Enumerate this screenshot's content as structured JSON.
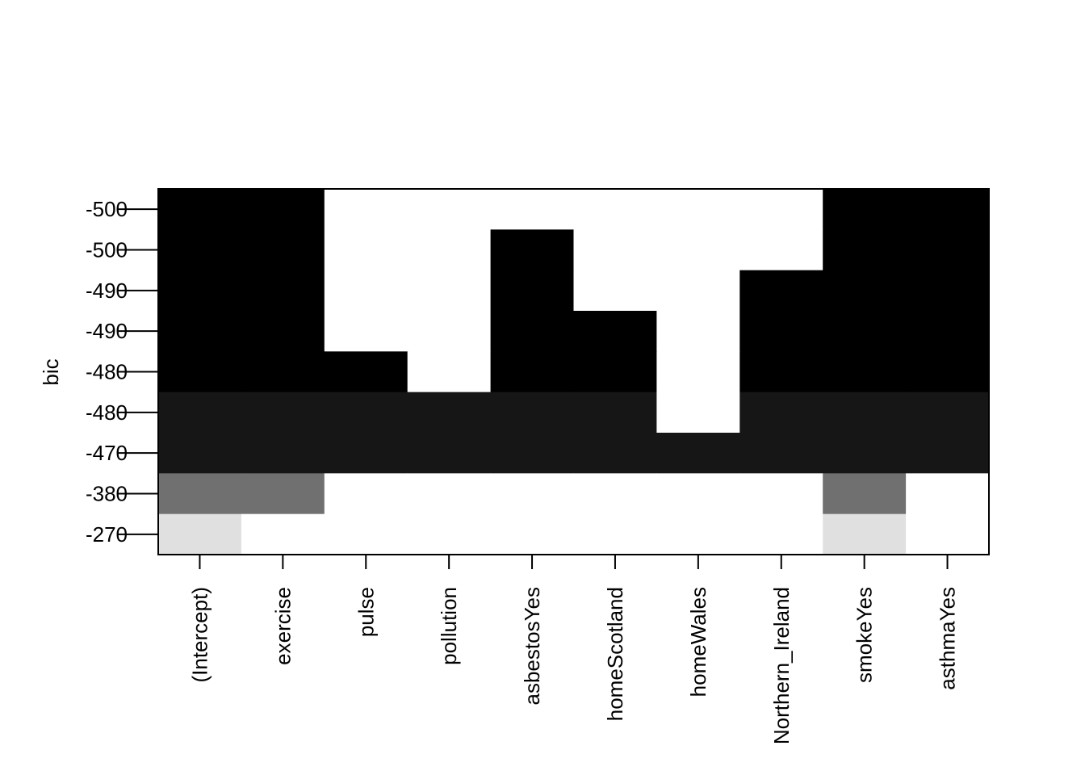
{
  "chart_data": {
    "type": "heatmap",
    "title": "",
    "xlabel": "",
    "ylabel": "bic",
    "variables": [
      "(Intercept)",
      "exercise",
      "pulse",
      "pollution",
      "asbestosYes",
      "homeScotland",
      "homeWales",
      "Northern_Ireland",
      "smokeYes",
      "asthmaYes"
    ],
    "y_tick_labels": [
      "-500",
      "-500",
      "-490",
      "-490",
      "-480",
      "-480",
      "-470",
      "-380",
      "-270"
    ],
    "rows": [
      {
        "bic": "-500",
        "shade": "#000000",
        "included": [
          1,
          1,
          0,
          0,
          0,
          0,
          0,
          0,
          1,
          1
        ]
      },
      {
        "bic": "-500",
        "shade": "#000000",
        "included": [
          1,
          1,
          0,
          0,
          1,
          0,
          0,
          0,
          1,
          1
        ]
      },
      {
        "bic": "-490",
        "shade": "#000000",
        "included": [
          1,
          1,
          0,
          0,
          1,
          0,
          0,
          1,
          1,
          1
        ]
      },
      {
        "bic": "-490",
        "shade": "#000000",
        "included": [
          1,
          1,
          0,
          0,
          1,
          1,
          0,
          1,
          1,
          1
        ]
      },
      {
        "bic": "-480",
        "shade": "#000000",
        "included": [
          1,
          1,
          1,
          0,
          1,
          1,
          0,
          1,
          1,
          1
        ]
      },
      {
        "bic": "-480",
        "shade": "#161616",
        "included": [
          1,
          1,
          1,
          1,
          1,
          1,
          0,
          1,
          1,
          1
        ]
      },
      {
        "bic": "-470",
        "shade": "#161616",
        "included": [
          1,
          1,
          1,
          1,
          1,
          1,
          1,
          1,
          1,
          1
        ]
      },
      {
        "bic": "-380",
        "shade": "#707070",
        "included": [
          1,
          1,
          0,
          0,
          0,
          0,
          0,
          0,
          1,
          0
        ]
      },
      {
        "bic": "-270",
        "shade": "#e0e0e0",
        "included": [
          1,
          0,
          0,
          0,
          0,
          0,
          0,
          0,
          1,
          0
        ]
      }
    ],
    "grid": false,
    "legend": "none"
  }
}
